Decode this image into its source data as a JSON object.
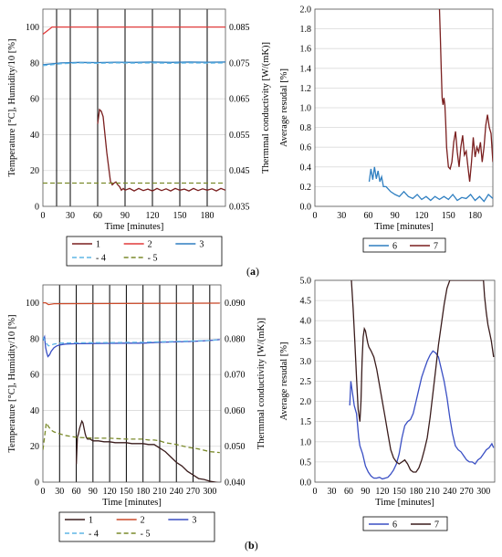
{
  "panel_labels": {
    "a": "a",
    "b": "b"
  },
  "colors": {
    "s1": "#7a1f1f",
    "s2": "#e03a3a",
    "s3": "#2f7fc1",
    "s4": "#5fb6e6",
    "s5": "#7a8a2a",
    "s6a": "#2f7fc1",
    "s7a": "#7a1f1f",
    "s1b": "#3a1c1c",
    "s2b": "#cc4a2a",
    "s3b": "#3a4fc4",
    "s4b": "#5fb6e6",
    "s5b": "#7a8a2a",
    "s6b": "#3a4fc4",
    "s7b": "#3a1c1c"
  },
  "chart_data": [
    {
      "id": "a-left",
      "type": "line",
      "xlabel": "Time [minutes]",
      "ylabel": "Temperature [°C],  Humidity/10 [%]",
      "y2label": "Thermmal conductivity [W/(mK)]",
      "xlim": [
        0,
        200
      ],
      "ylim": [
        0,
        110
      ],
      "y2lim": [
        0.035,
        0.09
      ],
      "xticks": [
        0,
        30,
        60,
        90,
        120,
        150,
        180
      ],
      "yticks": [
        0,
        20,
        40,
        60,
        80,
        100
      ],
      "y2ticks": [
        "0.035",
        "0.045",
        "0.055",
        "0.065",
        "0.075",
        "0.085"
      ],
      "y2tick_values": [
        0.035,
        0.045,
        0.055,
        0.065,
        0.075,
        0.085
      ],
      "vlines": [
        15,
        30,
        60,
        90,
        120,
        150,
        180
      ],
      "legend": [
        "1",
        "2",
        "3",
        "- 4",
        "- 5"
      ],
      "series": [
        {
          "name": "1",
          "axis": "y2",
          "x": [
            60,
            62,
            64,
            66,
            68,
            70,
            72,
            74,
            76,
            78,
            80,
            82,
            84,
            86,
            88,
            90,
            95,
            100,
            105,
            110,
            115,
            120,
            125,
            130,
            135,
            140,
            145,
            150,
            155,
            160,
            165,
            170,
            175,
            180,
            185,
            190,
            195,
            200
          ],
          "y": [
            0.058,
            0.062,
            0.0615,
            0.06,
            0.055,
            0.05,
            0.046,
            0.042,
            0.041,
            0.0415,
            0.0418,
            0.041,
            0.0405,
            0.0395,
            0.04,
            0.0395,
            0.04,
            0.0393,
            0.04,
            0.0394,
            0.0398,
            0.0393,
            0.04,
            0.0394,
            0.0399,
            0.0393,
            0.04,
            0.0395,
            0.0398,
            0.0393,
            0.04,
            0.0394,
            0.0399,
            0.0395,
            0.0399,
            0.0393,
            0.04,
            0.0395
          ]
        },
        {
          "name": "2",
          "axis": "y",
          "x": [
            0,
            5,
            10,
            12,
            200
          ],
          "y": [
            96,
            98,
            100,
            100,
            100
          ]
        },
        {
          "name": "3",
          "axis": "y",
          "x": [
            0,
            10,
            20,
            40,
            60,
            80,
            100,
            120,
            140,
            160,
            180,
            200
          ],
          "y": [
            79,
            79.5,
            80,
            80.3,
            80.2,
            80.4,
            80.3,
            80.5,
            80.3,
            80.5,
            80.4,
            80.5
          ]
        },
        {
          "name": "4",
          "axis": "y",
          "dashed": true,
          "x": [
            0,
            10,
            20,
            40,
            60,
            80,
            100,
            120,
            140,
            160,
            180,
            200
          ],
          "y": [
            78.5,
            79,
            79.6,
            80,
            79.8,
            80,
            79.9,
            80,
            79.8,
            80,
            79.9,
            80
          ]
        },
        {
          "name": "5",
          "axis": "y",
          "dashed": true,
          "x": [
            0,
            200
          ],
          "y": [
            13,
            13
          ]
        }
      ]
    },
    {
      "id": "a-right",
      "type": "line",
      "xlabel": "Time [minutes]",
      "ylabel": "Average resudal [%]",
      "xlim": [
        0,
        200
      ],
      "ylim": [
        0,
        2.0
      ],
      "xticks": [
        0,
        30,
        60,
        90,
        120,
        150,
        180
      ],
      "yticks": [
        "0.0",
        "0.2",
        "0.4",
        "0.6",
        "0.8",
        "1.0",
        "1.2",
        "1.4",
        "1.6",
        "1.8",
        "2.0"
      ],
      "ytick_values": [
        0,
        0.2,
        0.4,
        0.6,
        0.8,
        1.0,
        1.2,
        1.4,
        1.6,
        1.8,
        2.0
      ],
      "legend": [
        "6",
        "7"
      ],
      "series": [
        {
          "name": "6",
          "x": [
            61,
            63,
            65,
            67,
            69,
            71,
            73,
            75,
            77,
            80,
            85,
            90,
            95,
            100,
            105,
            110,
            115,
            120,
            125,
            130,
            135,
            140,
            145,
            150,
            155,
            160,
            165,
            170,
            175,
            180,
            185,
            190,
            195,
            200
          ],
          "y": [
            0.25,
            0.38,
            0.27,
            0.4,
            0.28,
            0.36,
            0.25,
            0.3,
            0.2,
            0.2,
            0.15,
            0.12,
            0.1,
            0.15,
            0.1,
            0.08,
            0.12,
            0.07,
            0.1,
            0.06,
            0.1,
            0.07,
            0.1,
            0.07,
            0.12,
            0.06,
            0.09,
            0.08,
            0.12,
            0.06,
            0.1,
            0.05,
            0.12,
            0.08
          ]
        },
        {
          "name": "7",
          "x": [
            140,
            141,
            142,
            143,
            144,
            145,
            146,
            147,
            148,
            150,
            152,
            154,
            156,
            158,
            160,
            162,
            164,
            166,
            168,
            170,
            172,
            174,
            176,
            178,
            180,
            182,
            184,
            186,
            188,
            190,
            192,
            194,
            196,
            198,
            200
          ],
          "y": [
            2.0,
            1.7,
            1.4,
            1.1,
            1.03,
            1.1,
            1.03,
            0.85,
            0.6,
            0.4,
            0.38,
            0.45,
            0.65,
            0.76,
            0.55,
            0.4,
            0.6,
            0.72,
            0.52,
            0.56,
            0.4,
            0.25,
            0.45,
            0.7,
            0.5,
            0.6,
            0.55,
            0.65,
            0.45,
            0.6,
            0.82,
            0.93,
            0.8,
            0.74,
            0.45
          ]
        }
      ]
    },
    {
      "id": "b-left",
      "type": "line",
      "xlabel": "Time [minutes]",
      "ylabel": "Temperature [°C],  Humidity/10 [%]",
      "y2label": "Thermmal conductivity [W/(mK)]",
      "xlim": [
        0,
        320
      ],
      "ylim": [
        0,
        110
      ],
      "y2lim": [
        0.04,
        0.095
      ],
      "xticks": [
        0,
        30,
        60,
        90,
        120,
        150,
        180,
        210,
        240,
        270,
        300
      ],
      "yticks": [
        0,
        20,
        40,
        60,
        80,
        100
      ],
      "y2ticks": [
        "0.040",
        "0.050",
        "0.060",
        "0.070",
        "0.080",
        "0.090"
      ],
      "y2tick_values": [
        0.04,
        0.05,
        0.06,
        0.07,
        0.08,
        0.09
      ],
      "vlines": [
        30,
        60,
        90,
        120,
        150,
        180,
        210,
        240,
        270,
        300
      ],
      "legend": [
        "1",
        "2",
        "3",
        "- 4",
        "- 5"
      ],
      "series": [
        {
          "name": "1",
          "axis": "y",
          "x": [
            60,
            62,
            64,
            66,
            68,
            70,
            72,
            74,
            76,
            78,
            80,
            85,
            90,
            100,
            110,
            120,
            130,
            140,
            150,
            160,
            170,
            180,
            190,
            200,
            210,
            220,
            230,
            240,
            250,
            260,
            270,
            280,
            290,
            300,
            310,
            318
          ],
          "y": [
            10,
            25,
            27,
            30,
            32,
            34,
            33,
            30,
            27,
            25,
            24,
            24,
            23,
            23,
            22.5,
            22.5,
            22,
            22,
            22,
            21.5,
            21.5,
            21.5,
            21,
            21,
            19,
            17,
            14,
            11,
            9,
            6,
            4,
            2,
            1.5,
            0.5,
            0,
            -0.5
          ]
        },
        {
          "name": "2",
          "axis": "y",
          "x": [
            0,
            5,
            10,
            20,
            318
          ],
          "y": [
            100,
            100,
            99,
            99.5,
            99.8
          ]
        },
        {
          "name": "3",
          "axis": "y",
          "x": [
            0,
            3,
            5,
            7,
            9,
            12,
            15,
            20,
            25,
            30,
            40,
            60,
            90,
            120,
            150,
            180,
            210,
            240,
            270,
            300,
            318
          ],
          "y": [
            79,
            81,
            75,
            72,
            70,
            71,
            73,
            75,
            76,
            76.5,
            77,
            77.2,
            77.3,
            77.4,
            77.5,
            77.5,
            78,
            78.2,
            78.5,
            79,
            79.5
          ]
        },
        {
          "name": "4",
          "axis": "y",
          "dashed": true,
          "x": [
            0,
            5,
            10,
            20,
            30,
            60,
            120,
            180,
            240,
            300,
            318
          ],
          "y": [
            81,
            78,
            76,
            77,
            77.5,
            77.7,
            77.8,
            78,
            78.5,
            79,
            79.5
          ]
        },
        {
          "name": "5",
          "axis": "y",
          "dashed": true,
          "x": [
            0,
            3,
            6,
            10,
            15,
            20,
            30,
            40,
            60,
            90,
            120,
            150,
            180,
            190,
            200,
            210,
            220,
            240,
            260,
            280,
            300,
            318
          ],
          "y": [
            18,
            25,
            33,
            31,
            29,
            28,
            27,
            26,
            25,
            24.5,
            24.5,
            24,
            24,
            23.5,
            23.5,
            23,
            22,
            21,
            19.5,
            18.5,
            17,
            16.5
          ]
        }
      ]
    },
    {
      "id": "b-right",
      "type": "line",
      "xlabel": "Time [minutes]",
      "ylabel": "Average resudal [%]",
      "xlim": [
        0,
        320
      ],
      "ylim": [
        0,
        5.0
      ],
      "xticks": [
        0,
        30,
        60,
        90,
        120,
        150,
        180,
        210,
        240,
        270,
        300
      ],
      "yticks": [
        "0.0",
        "0.5",
        "1.0",
        "1.5",
        "2.0",
        "2.5",
        "3.0",
        "3.5",
        "4.0",
        "4.5",
        "5.0"
      ],
      "ytick_values": [
        0,
        0.5,
        1.0,
        1.5,
        2.0,
        2.5,
        3.0,
        3.5,
        4.0,
        4.5,
        5.0
      ],
      "legend": [
        "6",
        "7"
      ],
      "series": [
        {
          "name": "6",
          "x": [
            62,
            64,
            66,
            68,
            70,
            72,
            74,
            76,
            78,
            80,
            85,
            90,
            95,
            100,
            105,
            110,
            115,
            120,
            125,
            130,
            135,
            140,
            145,
            150,
            155,
            160,
            165,
            170,
            175,
            180,
            185,
            190,
            195,
            200,
            205,
            210,
            215,
            220,
            225,
            230,
            235,
            240,
            245,
            250,
            255,
            260,
            265,
            270,
            275,
            280,
            285,
            290,
            295,
            300,
            305,
            310,
            315,
            318
          ],
          "y": [
            1.9,
            2.5,
            2.3,
            2.1,
            1.9,
            1.8,
            1.7,
            1.4,
            1.1,
            0.9,
            0.7,
            0.4,
            0.25,
            0.15,
            0.1,
            0.1,
            0.12,
            0.08,
            0.1,
            0.12,
            0.2,
            0.3,
            0.45,
            0.7,
            1.1,
            1.4,
            1.5,
            1.55,
            1.7,
            2.0,
            2.3,
            2.6,
            2.8,
            3.0,
            3.15,
            3.25,
            3.2,
            3.1,
            2.8,
            2.5,
            2.1,
            1.6,
            1.2,
            0.9,
            0.8,
            0.75,
            0.65,
            0.55,
            0.5,
            0.5,
            0.45,
            0.55,
            0.6,
            0.7,
            0.8,
            0.85,
            0.95,
            0.85
          ]
        },
        {
          "name": "7",
          "x": [
            65,
            68,
            71,
            74,
            77,
            80,
            82,
            84,
            86,
            88,
            90,
            92,
            94,
            96,
            98,
            100,
            105,
            110,
            115,
            120,
            125,
            130,
            135,
            140,
            145,
            150,
            155,
            160,
            165,
            170,
            175,
            180,
            185,
            190,
            195,
            200,
            205,
            210,
            215,
            220,
            225,
            230,
            235,
            240,
            300,
            302,
            305,
            308,
            311,
            314,
            318
          ],
          "y": [
            5.0,
            4.3,
            3.5,
            2.6,
            1.8,
            1.5,
            2.0,
            3.0,
            3.6,
            3.8,
            3.75,
            3.6,
            3.45,
            3.35,
            3.3,
            3.25,
            3.1,
            2.8,
            2.4,
            2.0,
            1.6,
            1.2,
            0.8,
            0.6,
            0.5,
            0.45,
            0.5,
            0.55,
            0.45,
            0.3,
            0.25,
            0.25,
            0.35,
            0.55,
            0.8,
            1.1,
            1.6,
            2.2,
            2.8,
            3.4,
            3.9,
            4.4,
            4.8,
            5.0,
            5.0,
            4.6,
            4.2,
            3.9,
            3.7,
            3.5,
            3.1
          ]
        }
      ]
    }
  ]
}
